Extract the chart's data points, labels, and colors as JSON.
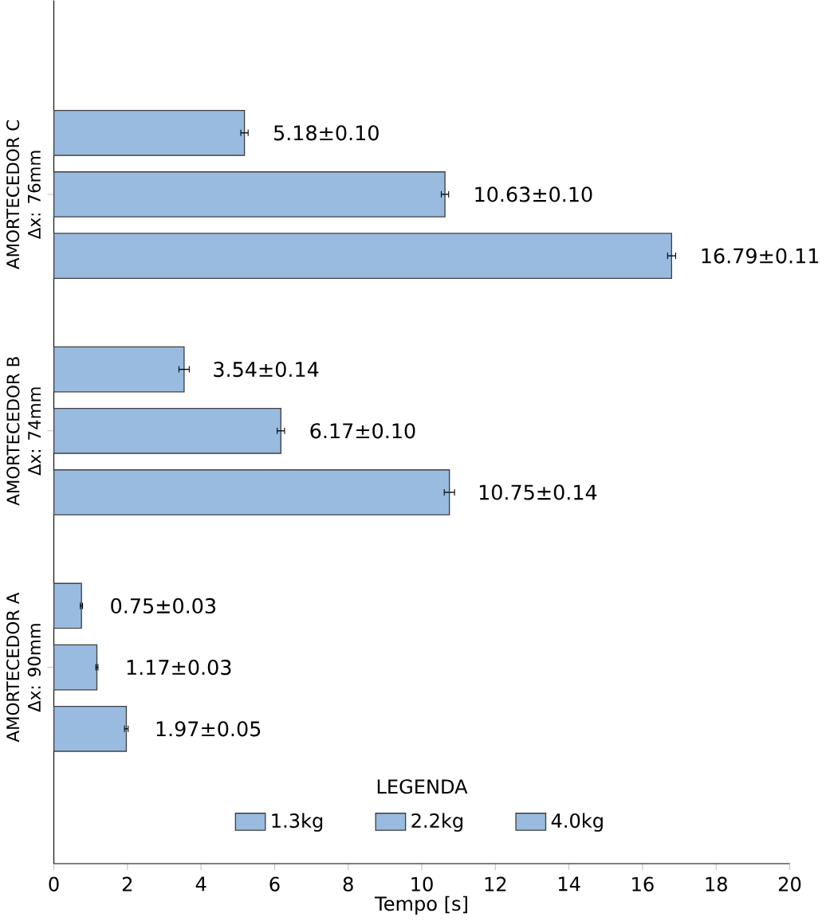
{
  "chart_data": {
    "type": "bar",
    "orientation": "horizontal",
    "xlabel": "Tempo [s]",
    "legend_title": "LEGENDA",
    "legend": "bottom",
    "categories": [
      "AMORTECEDOR C Δx: 76mm",
      "AMORTECEDOR B Δx: 74mm",
      "AMORTECEDOR A Δx: 90mm"
    ],
    "xlim": [
      0,
      20
    ],
    "xticks": [
      0,
      2,
      4,
      6,
      8,
      10,
      12,
      14,
      16,
      18,
      20
    ],
    "series": [
      {
        "name": "1.3kg",
        "color": "#99bbe0",
        "values": [
          16.79,
          10.75,
          1.97
        ],
        "errors": [
          0.11,
          0.14,
          0.05
        ],
        "value_labels": [
          "16.79±0.11",
          "10.75±0.14",
          "1.97±0.05"
        ]
      },
      {
        "name": "2.2kg",
        "color": "#99bbe0",
        "values": [
          10.63,
          6.17,
          1.17
        ],
        "errors": [
          0.1,
          0.1,
          0.03
        ],
        "value_labels": [
          "10.63±0.10",
          "6.17±0.10",
          "1.17±0.03"
        ]
      },
      {
        "name": "4.0kg",
        "color": "#99bbe0",
        "values": [
          5.18,
          3.54,
          0.75
        ],
        "errors": [
          0.1,
          0.14,
          0.03
        ],
        "value_labels": [
          "5.18±0.10",
          "3.54±0.14",
          "0.75±0.03"
        ]
      }
    ]
  }
}
